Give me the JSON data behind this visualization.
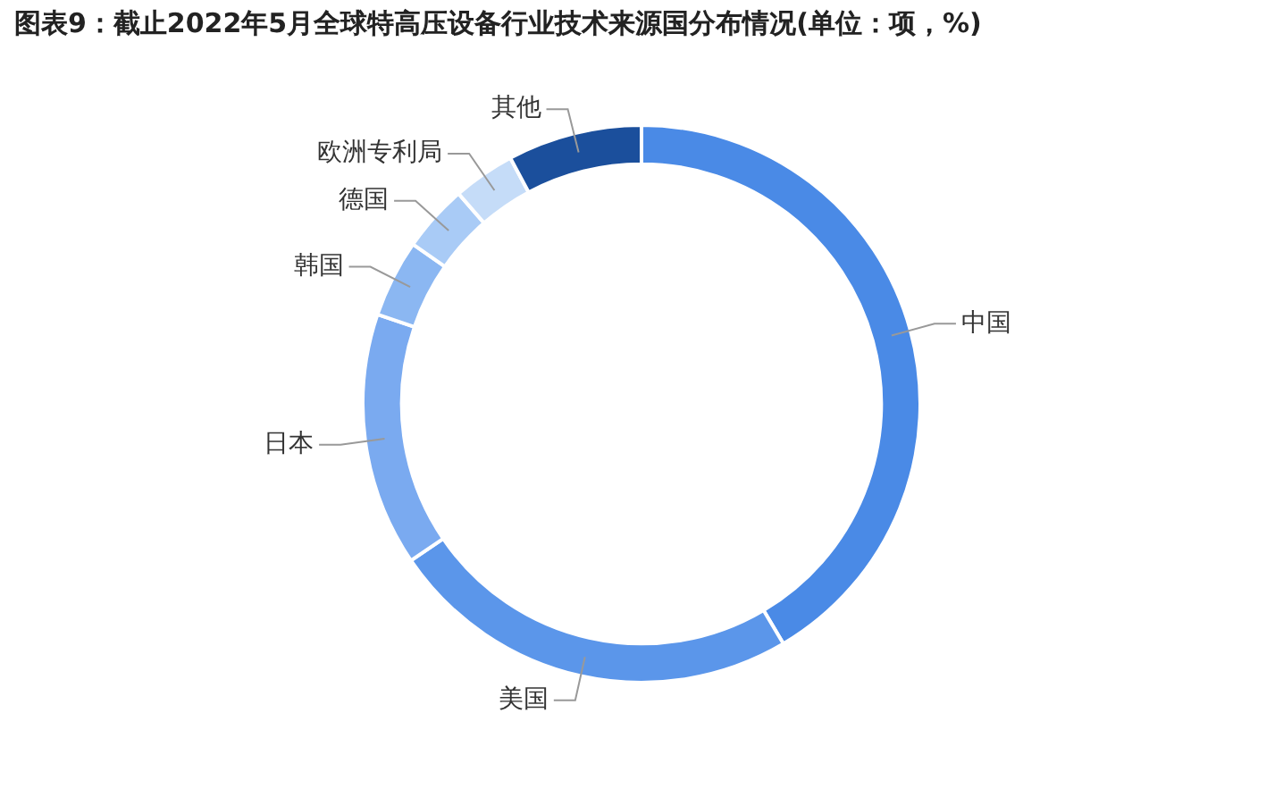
{
  "chart_data": {
    "type": "donut",
    "title": "图表9：截止2022年5月全球特高压设备行业技术来源国分布情况(单位：项，%)",
    "categories": [
      "中国",
      "美国",
      "日本",
      "韩国",
      "德国",
      "欧洲专利局",
      "其他"
    ],
    "values": [
      41.5,
      24,
      14.7,
      4.5,
      3.9,
      3.6,
      7.8
    ],
    "colors": [
      "#4a8ae6",
      "#5b96ea",
      "#7aaaf0",
      "#8bb7f2",
      "#a9cbf6",
      "#c5dcf8",
      "#1b4f9c"
    ],
    "legend": false
  }
}
